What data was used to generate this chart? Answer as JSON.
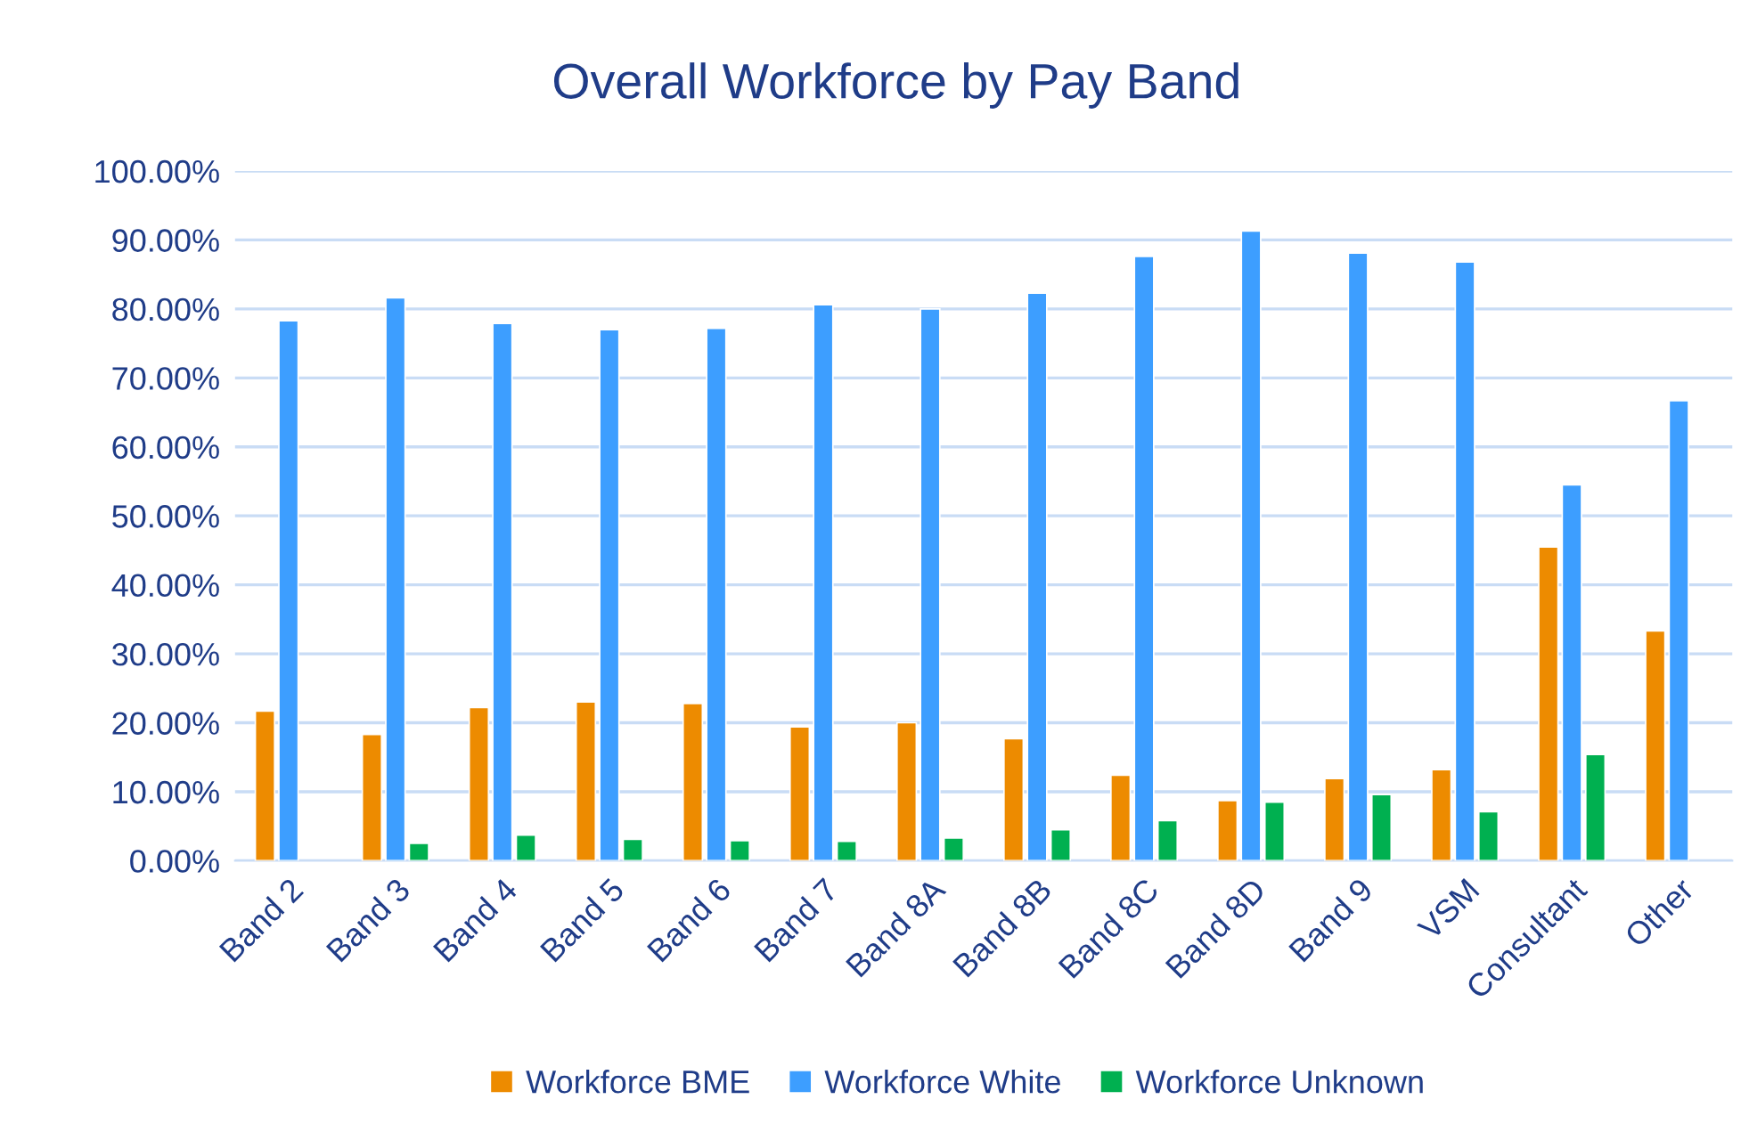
{
  "chart_data": {
    "type": "bar",
    "title": "Overall Workforce by Pay Band",
    "categories": [
      "Band 2",
      "Band 3",
      "Band 4",
      "Band 5",
      "Band 6",
      "Band 7",
      "Band 8A",
      "Band 8B",
      "Band 8C",
      "Band 8D",
      "Band 9",
      "VSM",
      "Consultant",
      "Other"
    ],
    "series": [
      {
        "name": "Workforce BME",
        "color": "#ed8b00",
        "values": [
          21.7,
          18.3,
          22.2,
          23.0,
          22.8,
          19.4,
          20.0,
          17.7,
          12.4,
          8.7,
          11.9,
          13.2,
          45.5,
          33.3
        ]
      },
      {
        "name": "Workforce White",
        "color": "#3d9eff",
        "values": [
          78.3,
          81.6,
          77.9,
          77.0,
          77.2,
          80.6,
          80.0,
          82.3,
          87.6,
          91.3,
          88.1,
          86.8,
          54.5,
          66.7
        ]
      },
      {
        "name": "Workforce Unknown",
        "color": "#00b050",
        "values": [
          null,
          2.5,
          3.7,
          3.1,
          2.9,
          2.8,
          3.3,
          4.5,
          5.8,
          8.5,
          9.6,
          7.1,
          15.4,
          null
        ]
      }
    ],
    "ylim": [
      0,
      100
    ],
    "yticks": [
      {
        "value": 0,
        "label": "0.00%"
      },
      {
        "value": 10,
        "label": "10.00%"
      },
      {
        "value": 20,
        "label": "20.00%"
      },
      {
        "value": 30,
        "label": "30.00%"
      },
      {
        "value": 40,
        "label": "40.00%"
      },
      {
        "value": 50,
        "label": "50.00%"
      },
      {
        "value": 60,
        "label": "60.00%"
      },
      {
        "value": 70,
        "label": "70.00%"
      },
      {
        "value": 80,
        "label": "80.00%"
      },
      {
        "value": 90,
        "label": "90.00%"
      },
      {
        "value": 100,
        "label": "100.00%"
      }
    ],
    "grid": "y",
    "legend": "bottom"
  }
}
